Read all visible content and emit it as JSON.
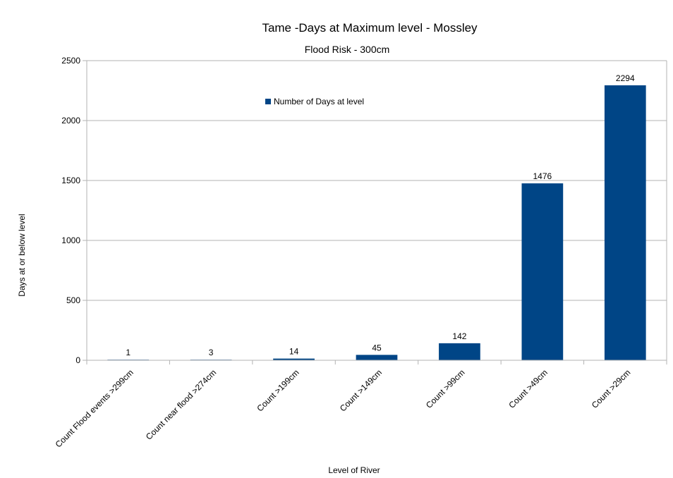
{
  "chart_data": {
    "type": "bar",
    "title": "Tame -Days at Maximum level - Mossley",
    "subtitle": "Flood Risk -  300cm",
    "xlabel": "Level of River",
    "ylabel": "Days at or below level",
    "ylim": [
      0,
      2500
    ],
    "yticks": [
      0,
      500,
      1000,
      1500,
      2000,
      2500
    ],
    "grid": true,
    "legend_position": "top-center",
    "categories": [
      "Count Flood events >299cm",
      "Count near flood >274cm",
      "Count  >199cm",
      "Count  >149cm",
      "Count  >99cm",
      "Count  >49cm",
      "Count  >29cm"
    ],
    "series": [
      {
        "name": "Number of Days at level",
        "color": "#004586",
        "values": [
          1,
          3,
          14,
          45,
          142,
          1476,
          2294
        ]
      }
    ]
  }
}
